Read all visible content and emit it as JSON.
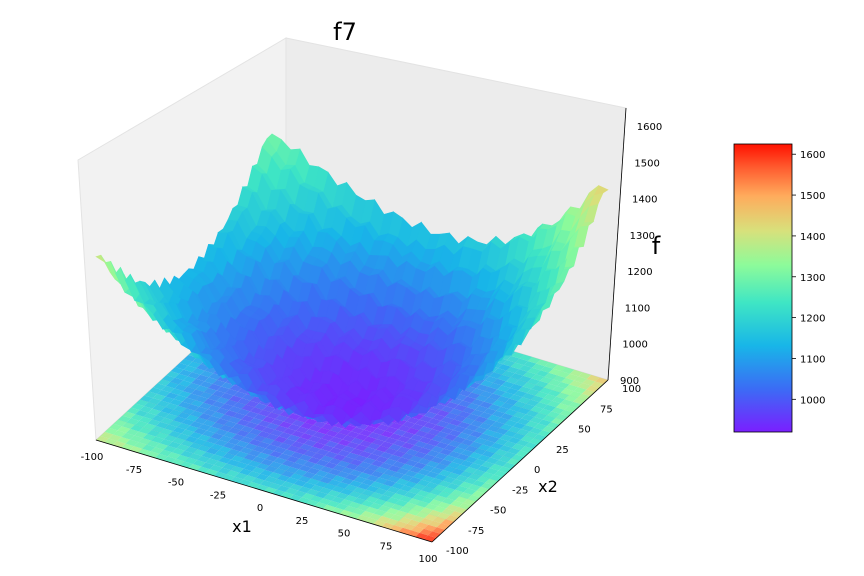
{
  "chart_data": {
    "type": "surface3d",
    "title": "f7",
    "xlabel": "x1",
    "ylabel": "x2",
    "zlabel": "f",
    "xlim": [
      -100,
      100
    ],
    "ylim": [
      -100,
      100
    ],
    "zlim": [
      900,
      1650
    ],
    "x_ticks": [
      "-100",
      "-75",
      "-50",
      "-25",
      "0",
      "25",
      "50",
      "75",
      "100"
    ],
    "y_ticks": [
      "-100",
      "-75",
      "-50",
      "-25",
      "0",
      "25",
      "50",
      "75",
      "100"
    ],
    "z_ticks": [
      "900",
      "1000",
      "1100",
      "1200",
      "1300",
      "1400",
      "1500",
      "1600"
    ],
    "colormap": "rainbow",
    "colorbar": {
      "range": [
        920,
        1625
      ],
      "ticks": [
        "1000",
        "1100",
        "1200",
        "1300",
        "1400",
        "1500",
        "1600"
      ]
    },
    "surface_samples": {
      "description_of_corner_values": "approx f at grid corners and center",
      "center": 930,
      "corner_x_neg_y_neg": 1390,
      "corner_x_pos_y_neg": 1625,
      "corner_x_neg_y_pos": 1290,
      "corner_x_pos_y_pos": 1440
    },
    "contour_projection": "filled contour projected on the z floor",
    "grid": true
  }
}
